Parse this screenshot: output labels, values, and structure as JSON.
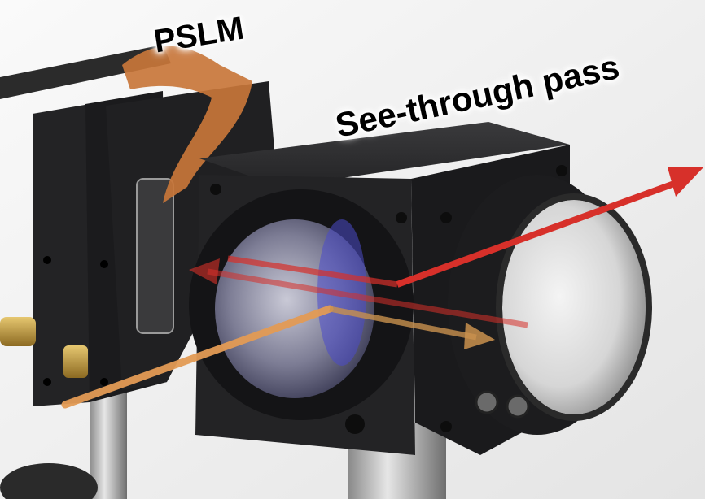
{
  "labels": {
    "pslm": "PSLM",
    "see_through": "See-through pass"
  },
  "colors": {
    "background": "#f2f2f2",
    "housing": "#1c1c1e",
    "flex_cable": "#c8763a",
    "reflected_beam": "#d7302a",
    "input_beam": "#e39b55",
    "brass": "#c9a24a"
  }
}
